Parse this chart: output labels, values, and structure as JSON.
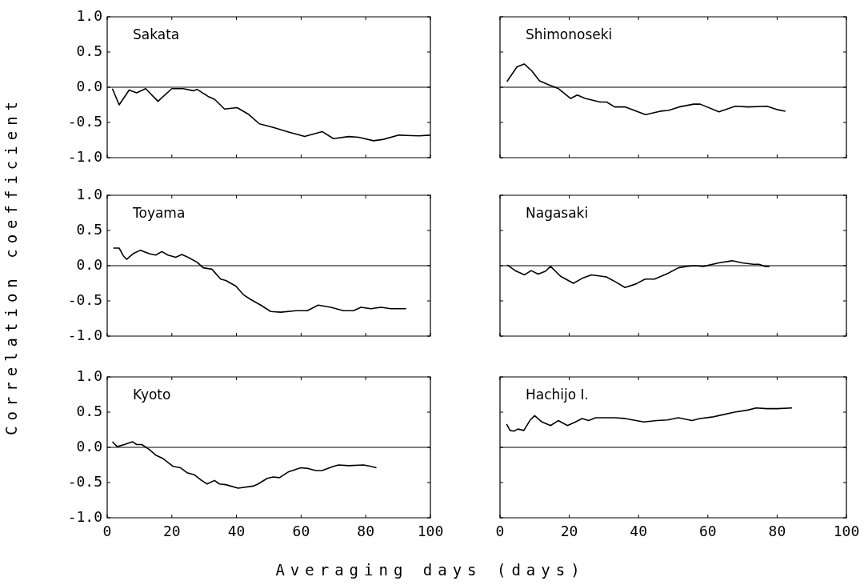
{
  "chart_data": [
    {
      "type": "line",
      "title": "Sakata",
      "xlim": [
        0,
        100
      ],
      "xticks": [
        0,
        20,
        40,
        60,
        80,
        100
      ],
      "ylim": [
        -1,
        1
      ],
      "yticks": [
        {
          "value": -1,
          "label": "-1.0"
        },
        -0.5,
        {
          "value": 0,
          "label": "0.0"
        },
        0.5,
        {
          "value": 1,
          "label": "1.0"
        }
      ],
      "tick_labels": "y",
      "ref_lines": [
        {
          "axis": "y",
          "value": 0
        }
      ],
      "series": [
        {
          "color": "#000000",
          "x": [
            1.6,
            3.7,
            6.8,
            9.1,
            11.9,
            15.7,
            20,
            23.5,
            26.6,
            27.8,
            31.2,
            33.2,
            36.3,
            40.2,
            43.6,
            47.1,
            51.4,
            55.7,
            61.1,
            66.5,
            70,
            74.7,
            77.8,
            82.4,
            85.5,
            90.2,
            96.4,
            100
          ],
          "values": [
            -0.02,
            -0.25,
            -0.04,
            -0.08,
            -0.02,
            -0.2,
            -0.02,
            -0.02,
            -0.05,
            -0.03,
            -0.13,
            -0.17,
            -0.31,
            -0.29,
            -0.38,
            -0.52,
            -0.57,
            -0.63,
            -0.7,
            -0.63,
            -0.73,
            -0.7,
            -0.71,
            -0.76,
            -0.74,
            -0.68,
            -0.69,
            -0.68
          ]
        }
      ]
    },
    {
      "type": "line",
      "title": "Shimonoseki",
      "xlim": [
        0,
        100
      ],
      "xticks": [
        0,
        20,
        40,
        60,
        80,
        100
      ],
      "ylim": [
        -1,
        1
      ],
      "yticks": [
        -1,
        -0.5,
        0,
        0.5,
        1
      ],
      "tick_labels": false,
      "ref_lines": [
        {
          "axis": "y",
          "value": 0
        }
      ],
      "series": [
        {
          "color": "#000000",
          "x": [
            2,
            4.9,
            7,
            9.2,
            11.4,
            13.8,
            16.9,
            20.4,
            22.3,
            24.6,
            28.9,
            30.8,
            33.1,
            36.2,
            42,
            46.3,
            48.6,
            51.7,
            55.9,
            57.8,
            63.2,
            67.9,
            71.7,
            77.1,
            80.2,
            82.4
          ],
          "values": [
            0.08,
            0.29,
            0.33,
            0.23,
            0.09,
            0.04,
            -0.02,
            -0.16,
            -0.11,
            -0.16,
            -0.21,
            -0.21,
            -0.28,
            -0.28,
            -0.39,
            -0.34,
            -0.33,
            -0.28,
            -0.24,
            -0.24,
            -0.35,
            -0.27,
            -0.28,
            -0.27,
            -0.32,
            -0.34
          ]
        }
      ]
    },
    {
      "type": "line",
      "title": "Toyama",
      "ylabel": "Correlation coefficient",
      "xlim": [
        0,
        100
      ],
      "xticks": [
        0,
        20,
        40,
        60,
        80,
        100
      ],
      "ylim": [
        -1,
        1
      ],
      "yticks": [
        {
          "value": -1,
          "label": "-1.0"
        },
        -0.5,
        {
          "value": 0,
          "label": "0.0"
        },
        0.5,
        {
          "value": 1,
          "label": "1.0"
        }
      ],
      "tick_labels": "y",
      "ref_lines": [
        {
          "axis": "y",
          "value": 0
        }
      ],
      "series": [
        {
          "color": "#000000",
          "x": [
            1.9,
            3.7,
            5,
            6,
            8,
            10.3,
            13,
            15,
            16.9,
            18.8,
            21.2,
            23.1,
            25,
            27.8,
            29.7,
            32.4,
            35.1,
            36.7,
            39.8,
            42.1,
            44.4,
            47.5,
            50.6,
            53.7,
            58.4,
            61.9,
            65.3,
            69.2,
            73.1,
            76.2,
            78.5,
            81.6,
            84.7,
            87.8,
            92.5
          ],
          "values": [
            0.25,
            0.25,
            0.14,
            0.09,
            0.17,
            0.22,
            0.17,
            0.15,
            0.2,
            0.15,
            0.12,
            0.16,
            0.12,
            0.05,
            -0.03,
            -0.05,
            -0.19,
            -0.21,
            -0.29,
            -0.41,
            -0.48,
            -0.56,
            -0.65,
            -0.66,
            -0.64,
            -0.64,
            -0.56,
            -0.59,
            -0.64,
            -0.64,
            -0.59,
            -0.61,
            -0.59,
            -0.61,
            -0.61
          ]
        }
      ]
    },
    {
      "type": "line",
      "title": "Nagasaki",
      "xlim": [
        0,
        100
      ],
      "xticks": [
        0,
        20,
        40,
        60,
        80,
        100
      ],
      "ylim": [
        -1,
        1
      ],
      "yticks": [
        -1,
        -0.5,
        0,
        0.5,
        1
      ],
      "tick_labels": false,
      "ref_lines": [
        {
          "axis": "y",
          "value": 0
        }
      ],
      "series": [
        {
          "color": "#000000",
          "x": [
            2.1,
            4.4,
            7.1,
            9,
            11,
            13.1,
            14.6,
            17.5,
            21.2,
            23.7,
            26.4,
            30.7,
            33,
            36.1,
            39.2,
            41.9,
            44.6,
            48.4,
            51.5,
            53.8,
            56.1,
            58.8,
            63.1,
            67,
            70,
            73.1,
            74.7,
            76.6,
            77.8
          ],
          "values": [
            0.01,
            -0.07,
            -0.13,
            -0.07,
            -0.12,
            -0.08,
            -0.01,
            -0.15,
            -0.25,
            -0.18,
            -0.13,
            -0.16,
            -0.22,
            -0.31,
            -0.26,
            -0.19,
            -0.19,
            -0.11,
            -0.03,
            -0.01,
            0,
            -0.01,
            0.04,
            0.07,
            0.04,
            0.02,
            0.02,
            -0.01,
            -0.01
          ]
        }
      ]
    },
    {
      "type": "line",
      "title": "Kyoto",
      "xlabel": "Averaging days (days)",
      "xlim": [
        0,
        100
      ],
      "xticks": [
        0,
        20,
        40,
        60,
        80,
        100
      ],
      "ylim": [
        -1,
        1
      ],
      "yticks": [
        {
          "value": -1,
          "label": "-1.0"
        },
        -0.5,
        {
          "value": 0,
          "label": "0.0"
        },
        0.5,
        {
          "value": 1,
          "label": "1.0"
        }
      ],
      "ref_lines": [
        {
          "axis": "y",
          "value": 0
        }
      ],
      "series": [
        {
          "color": "#000000",
          "x": [
            1.6,
            3.1,
            5.3,
            7.8,
            9.1,
            10.7,
            13,
            15,
            17.3,
            20.4,
            22.7,
            24.7,
            27,
            28.9,
            30.9,
            33.2,
            34.7,
            36.7,
            40.5,
            45.2,
            46.7,
            49.5,
            51.4,
            53.3,
            56,
            59.9,
            62.2,
            64.6,
            66.5,
            70,
            71.6,
            74.7,
            79.3,
            81.6,
            83.3
          ],
          "values": [
            0.08,
            0.01,
            0.04,
            0.08,
            0.04,
            0.04,
            -0.03,
            -0.11,
            -0.16,
            -0.27,
            -0.29,
            -0.36,
            -0.39,
            -0.46,
            -0.52,
            -0.47,
            -0.52,
            -0.53,
            -0.58,
            -0.55,
            -0.52,
            -0.44,
            -0.42,
            -0.43,
            -0.35,
            -0.29,
            -0.3,
            -0.33,
            -0.33,
            -0.27,
            -0.25,
            -0.26,
            -0.25,
            -0.27,
            -0.29
          ]
        }
      ]
    },
    {
      "type": "line",
      "title": "Hachijo I.",
      "xlim": [
        0,
        100
      ],
      "xticks": [
        0,
        20,
        40,
        60,
        80,
        100
      ],
      "ylim": [
        -1,
        1
      ],
      "yticks": [
        -1,
        -0.5,
        0,
        0.5,
        1
      ],
      "tick_labels": "x",
      "ref_lines": [
        {
          "axis": "y",
          "value": 0
        }
      ],
      "series": [
        {
          "color": "#000000",
          "x": [
            1.9,
            2.9,
            4,
            5.2,
            6.9,
            8.6,
            10,
            12.1,
            14.6,
            16.8,
            19.5,
            21.8,
            23.7,
            25.6,
            27.6,
            33,
            36.1,
            41.5,
            45.3,
            48.4,
            51.5,
            55.4,
            57.7,
            61.2,
            63.1,
            67.7,
            71.6,
            73.9,
            77,
            80.1,
            84.3
          ],
          "values": [
            0.33,
            0.24,
            0.23,
            0.26,
            0.24,
            0.38,
            0.45,
            0.36,
            0.31,
            0.38,
            0.31,
            0.36,
            0.41,
            0.38,
            0.42,
            0.42,
            0.41,
            0.36,
            0.38,
            0.39,
            0.42,
            0.38,
            0.41,
            0.43,
            0.45,
            0.5,
            0.53,
            0.56,
            0.55,
            0.55,
            0.56
          ]
        }
      ]
    }
  ]
}
